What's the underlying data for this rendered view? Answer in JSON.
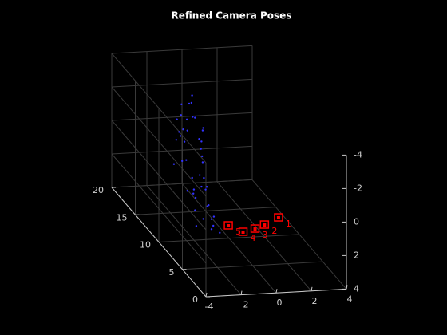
{
  "chart_data": {
    "type": "scatter3",
    "title": "Refined Camera Poses",
    "xlim": [
      -4,
      4
    ],
    "ylim": [
      0,
      20
    ],
    "zlim": [
      -4,
      4
    ],
    "xticks": [
      -4,
      -2,
      0,
      2,
      4
    ],
    "yticks": [
      0,
      5,
      10,
      15,
      20
    ],
    "zticks": [
      -4,
      -2,
      0,
      2,
      4
    ],
    "z_reversed": true,
    "grid": true,
    "points": {
      "color": "#3333ff",
      "x": [
        -1.2,
        -0.8,
        -1.6,
        -0.5,
        -1.0,
        -1.4,
        -0.7,
        -1.9,
        -1.1,
        -0.6,
        -1.3,
        -0.9,
        -1.5,
        -0.4,
        -1.0,
        -1.7,
        -0.8,
        -1.2,
        -0.5,
        -1.4,
        -1.0,
        -0.7,
        -1.6,
        -1.1,
        -0.9,
        -1.3,
        -0.6,
        -1.8,
        -1.0,
        -0.8,
        -1.2,
        -0.5,
        -1.5,
        -0.9,
        -1.1,
        -0.7,
        -1.3,
        -1.0,
        -0.6,
        -1.4,
        -0.9,
        -1.2,
        -0.8,
        -1.0,
        -1.6
      ],
      "y": [
        14,
        15,
        13,
        16,
        14,
        15,
        13,
        14,
        16,
        15,
        14,
        13,
        15,
        14,
        16,
        14,
        13,
        15,
        14,
        16,
        12,
        13,
        14,
        15,
        12,
        13,
        14,
        15,
        11,
        12,
        13,
        14,
        12,
        11,
        13,
        12,
        14,
        10,
        11,
        12,
        10,
        11,
        9,
        10,
        11
      ],
      "z": [
        -2.8,
        -2.5,
        -2.2,
        -2.6,
        -2.0,
        -1.8,
        -1.5,
        -1.9,
        -2.1,
        -1.6,
        -1.2,
        -1.0,
        -0.8,
        -1.3,
        -0.6,
        -0.9,
        -0.4,
        -0.2,
        -0.5,
        0.0,
        -0.3,
        0.4,
        0.6,
        0.9,
        1.0,
        1.3,
        1.5,
        1.1,
        1.2,
        1.7,
        2.0,
        2.2,
        1.9,
        2.3,
        2.5,
        2.7,
        2.4,
        2.8,
        3.0,
        2.9,
        3.2,
        3.1,
        3.3,
        3.4,
        3.5
      ]
    },
    "cameras": {
      "color": "#ff0000",
      "labels": [
        "1",
        "2",
        "3",
        "4",
        "5"
      ],
      "x": [
        0.9,
        -0.2,
        -0.9,
        -1.7,
        -2.2
      ],
      "y": [
        2.86,
        1.74,
        1.13,
        0.69,
        1.95
      ],
      "z": [
        0.5,
        0.5,
        0.5,
        0.5,
        0.5
      ]
    }
  }
}
